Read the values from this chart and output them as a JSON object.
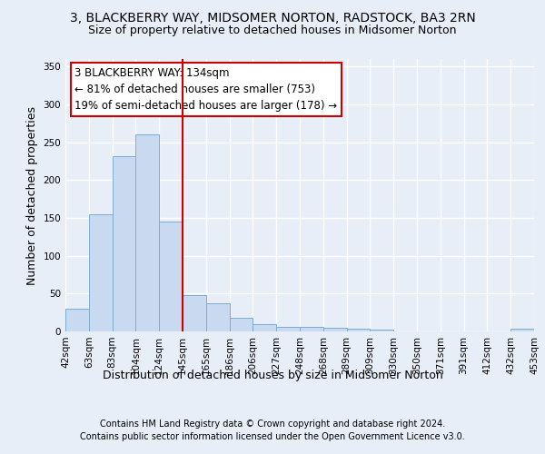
{
  "title1": "3, BLACKBERRY WAY, MIDSOMER NORTON, RADSTOCK, BA3 2RN",
  "title2": "Size of property relative to detached houses in Midsomer Norton",
  "xlabel": "Distribution of detached houses by size in Midsomer Norton",
  "ylabel": "Number of detached properties",
  "bar_values": [
    30,
    155,
    232,
    260,
    145,
    48,
    37,
    18,
    10,
    6,
    6,
    5,
    4,
    2,
    0,
    0,
    0,
    0,
    0,
    4
  ],
  "bar_labels": [
    "42sqm",
    "63sqm",
    "83sqm",
    "104sqm",
    "124sqm",
    "145sqm",
    "165sqm",
    "186sqm",
    "206sqm",
    "227sqm",
    "248sqm",
    "268sqm",
    "289sqm",
    "309sqm",
    "330sqm",
    "350sqm",
    "371sqm",
    "391sqm",
    "412sqm",
    "432sqm",
    "453sqm"
  ],
  "bar_color": "#c9d9f0",
  "bar_edge_color": "#7aadd4",
  "vline_color": "#cc0000",
  "annotation_title": "3 BLACKBERRY WAY: 134sqm",
  "annotation_line1": "← 81% of detached houses are smaller (753)",
  "annotation_line2": "19% of semi-detached houses are larger (178) →",
  "annotation_box_color": "#ffffff",
  "annotation_box_edge": "#cc0000",
  "footer1": "Contains HM Land Registry data © Crown copyright and database right 2024.",
  "footer2": "Contains public sector information licensed under the Open Government Licence v3.0.",
  "ylim": [
    0,
    360
  ],
  "yticks": [
    0,
    50,
    100,
    150,
    200,
    250,
    300,
    350
  ],
  "background_color": "#e8eef8",
  "grid_color": "#ffffff",
  "title_fontsize": 10,
  "subtitle_fontsize": 9,
  "axis_label_fontsize": 9,
  "tick_fontsize": 7.5,
  "footer_fontsize": 7
}
